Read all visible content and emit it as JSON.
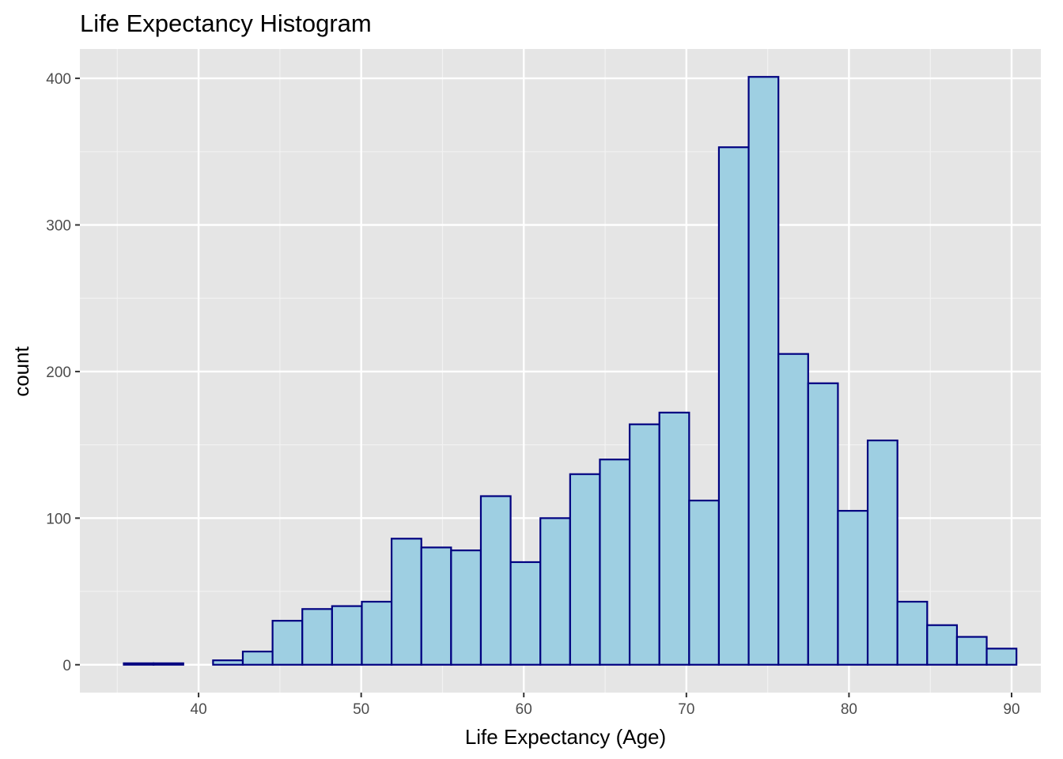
{
  "chart_data": {
    "type": "bar",
    "title": "Life Expectancy Histogram",
    "xlabel": "Life Expectancy (Age)",
    "ylabel": "count",
    "xlim": [
      32.7,
      91.8
    ],
    "ylim": [
      -19,
      420
    ],
    "x_ticks": [
      40,
      50,
      60,
      70,
      80,
      90
    ],
    "y_ticks": [
      0,
      100,
      200,
      300,
      400
    ],
    "grid": true,
    "bin_width": 1.83,
    "bin_start": 35.4,
    "values": [
      1,
      1,
      0,
      3,
      9,
      30,
      38,
      40,
      43,
      86,
      80,
      78,
      115,
      70,
      100,
      130,
      140,
      164,
      172,
      112,
      353,
      401,
      212,
      192,
      105,
      153,
      43,
      27,
      19,
      11
    ],
    "colors": {
      "fill": "#9ecfe2",
      "outline": "#000080",
      "panel": "#e5e5e5",
      "grid_major": "#ffffff",
      "grid_minor": "#f2f2f2"
    }
  }
}
